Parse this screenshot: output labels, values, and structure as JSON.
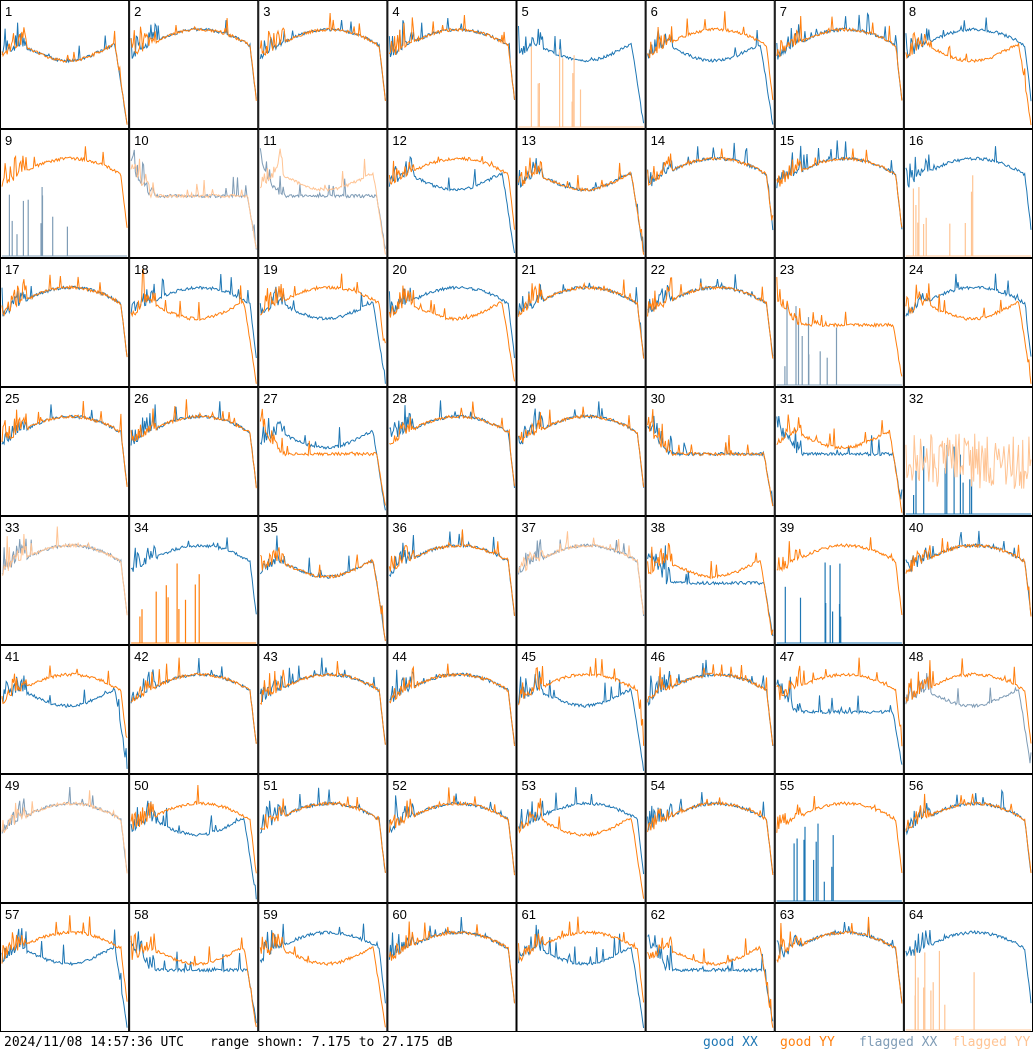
{
  "footer": {
    "timestamp": "2024/11/08 14:57:36 UTC",
    "range_text": "range shown: 7.175 to 27.175 dB",
    "legend": [
      {
        "key": "good_xx",
        "label": "good XX",
        "color": "#1f77b4"
      },
      {
        "key": "good_yy",
        "label": "good YY",
        "color": "#ff7f0e"
      },
      {
        "key": "flagged_xx",
        "label": "flagged XX",
        "color": "#7f9cb6"
      },
      {
        "key": "flagged_yy",
        "label": "flagged YY",
        "color": "#ffc494"
      }
    ]
  },
  "chart_data": {
    "type": "line",
    "layout": "8x8 small multiples",
    "y_range_db": [
      7.175,
      27.175
    ],
    "colors": {
      "good_xx": "#1f77b4",
      "good_yy": "#ff7f0e",
      "flagged_xx": "#7f9cb6",
      "flagged_yy": "#ffc494"
    },
    "panels": [
      {
        "label": "1",
        "xx": "dip",
        "yy": "dip",
        "flag_xx": false,
        "flag_yy": false
      },
      {
        "label": "2",
        "xx": "std",
        "yy": "std",
        "flag_xx": false,
        "flag_yy": false
      },
      {
        "label": "3",
        "xx": "std",
        "yy": "std",
        "flag_xx": false,
        "flag_yy": false
      },
      {
        "label": "4",
        "xx": "std",
        "yy": "std",
        "flag_xx": false,
        "flag_yy": false
      },
      {
        "label": "5",
        "xx": "dip",
        "yy": "dead",
        "flag_xx": false,
        "flag_yy": true
      },
      {
        "label": "6",
        "xx": "dip",
        "yy": "std",
        "flag_xx": false,
        "flag_yy": false
      },
      {
        "label": "7",
        "xx": "std",
        "yy": "std",
        "flag_xx": false,
        "flag_yy": false
      },
      {
        "label": "8",
        "xx": "std",
        "yy": "dip",
        "flag_xx": false,
        "flag_yy": false
      },
      {
        "label": "9",
        "xx": "dead",
        "yy": "std",
        "flag_xx": true,
        "flag_yy": false
      },
      {
        "label": "10",
        "xx": "flat",
        "yy": "flat",
        "flag_xx": true,
        "flag_yy": true
      },
      {
        "label": "11",
        "xx": "flat",
        "yy": "dip",
        "flag_xx": true,
        "flag_yy": true
      },
      {
        "label": "12",
        "xx": "dip",
        "yy": "std",
        "flag_xx": false,
        "flag_yy": false
      },
      {
        "label": "13",
        "xx": "dip",
        "yy": "dip",
        "flag_xx": false,
        "flag_yy": false
      },
      {
        "label": "14",
        "xx": "std",
        "yy": "std",
        "flag_xx": false,
        "flag_yy": false
      },
      {
        "label": "15",
        "xx": "std",
        "yy": "std",
        "flag_xx": false,
        "flag_yy": false
      },
      {
        "label": "16",
        "xx": "std",
        "yy": "dead",
        "flag_xx": false,
        "flag_yy": true
      },
      {
        "label": "17",
        "xx": "std",
        "yy": "std",
        "flag_xx": false,
        "flag_yy": false
      },
      {
        "label": "18",
        "xx": "std",
        "yy": "dip",
        "flag_xx": false,
        "flag_yy": false
      },
      {
        "label": "19",
        "xx": "dip",
        "yy": "std",
        "flag_xx": false,
        "flag_yy": false
      },
      {
        "label": "20",
        "xx": "std",
        "yy": "dip",
        "flag_xx": false,
        "flag_yy": false
      },
      {
        "label": "21",
        "xx": "std",
        "yy": "std",
        "flag_xx": false,
        "flag_yy": false
      },
      {
        "label": "22",
        "xx": "std",
        "yy": "std",
        "flag_xx": false,
        "flag_yy": false
      },
      {
        "label": "23",
        "xx": "dead",
        "yy": "flat",
        "flag_xx": true,
        "flag_yy": false
      },
      {
        "label": "24",
        "xx": "std",
        "yy": "dip",
        "flag_xx": false,
        "flag_yy": false
      },
      {
        "label": "25",
        "xx": "std",
        "yy": "std",
        "flag_xx": false,
        "flag_yy": false
      },
      {
        "label": "26",
        "xx": "std",
        "yy": "std",
        "flag_xx": false,
        "flag_yy": false
      },
      {
        "label": "27",
        "xx": "dip",
        "yy": "flat",
        "flag_xx": false,
        "flag_yy": false
      },
      {
        "label": "28",
        "xx": "std",
        "yy": "std",
        "flag_xx": false,
        "flag_yy": false
      },
      {
        "label": "29",
        "xx": "std",
        "yy": "std",
        "flag_xx": false,
        "flag_yy": false
      },
      {
        "label": "30",
        "xx": "flat",
        "yy": "flat",
        "flag_xx": false,
        "flag_yy": false
      },
      {
        "label": "31",
        "xx": "flat",
        "yy": "dip",
        "flag_xx": false,
        "flag_yy": false
      },
      {
        "label": "32",
        "xx": "dead",
        "yy": "noise",
        "flag_xx": false,
        "flag_yy": true
      },
      {
        "label": "33",
        "xx": "std",
        "yy": "std",
        "flag_xx": true,
        "flag_yy": true
      },
      {
        "label": "34",
        "xx": "std",
        "yy": "dead",
        "flag_xx": false,
        "flag_yy": false
      },
      {
        "label": "35",
        "xx": "dip",
        "yy": "dip",
        "flag_xx": false,
        "flag_yy": false
      },
      {
        "label": "36",
        "xx": "std",
        "yy": "std",
        "flag_xx": false,
        "flag_yy": false
      },
      {
        "label": "37",
        "xx": "std",
        "yy": "std",
        "flag_xx": true,
        "flag_yy": true
      },
      {
        "label": "38",
        "xx": "flat",
        "yy": "dip",
        "flag_xx": false,
        "flag_yy": false
      },
      {
        "label": "39",
        "xx": "dead",
        "yy": "std",
        "flag_xx": false,
        "flag_yy": false
      },
      {
        "label": "40",
        "xx": "std",
        "yy": "std",
        "flag_xx": false,
        "flag_yy": false
      },
      {
        "label": "41",
        "xx": "dip",
        "yy": "std",
        "flag_xx": false,
        "flag_yy": false
      },
      {
        "label": "42",
        "xx": "std",
        "yy": "std",
        "flag_xx": false,
        "flag_yy": false
      },
      {
        "label": "43",
        "xx": "std",
        "yy": "std",
        "flag_xx": false,
        "flag_yy": false
      },
      {
        "label": "44",
        "xx": "std",
        "yy": "std",
        "flag_xx": false,
        "flag_yy": false
      },
      {
        "label": "45",
        "xx": "dip",
        "yy": "std",
        "flag_xx": false,
        "flag_yy": false
      },
      {
        "label": "46",
        "xx": "std",
        "yy": "std",
        "flag_xx": false,
        "flag_yy": false
      },
      {
        "label": "47",
        "xx": "flat",
        "yy": "std",
        "flag_xx": false,
        "flag_yy": false
      },
      {
        "label": "48",
        "xx": "dip",
        "yy": "std",
        "flag_xx": true,
        "flag_yy": false
      },
      {
        "label": "49",
        "xx": "std",
        "yy": "std",
        "flag_xx": true,
        "flag_yy": true
      },
      {
        "label": "50",
        "xx": "dip",
        "yy": "std",
        "flag_xx": false,
        "flag_yy": false
      },
      {
        "label": "51",
        "xx": "std",
        "yy": "std",
        "flag_xx": false,
        "flag_yy": false
      },
      {
        "label": "52",
        "xx": "std",
        "yy": "std",
        "flag_xx": false,
        "flag_yy": false
      },
      {
        "label": "53",
        "xx": "std",
        "yy": "dip",
        "flag_xx": false,
        "flag_yy": false
      },
      {
        "label": "54",
        "xx": "std",
        "yy": "std",
        "flag_xx": false,
        "flag_yy": false
      },
      {
        "label": "55",
        "xx": "dead",
        "yy": "std",
        "flag_xx": false,
        "flag_yy": false
      },
      {
        "label": "56",
        "xx": "std",
        "yy": "std",
        "flag_xx": false,
        "flag_yy": false
      },
      {
        "label": "57",
        "xx": "dip",
        "yy": "std",
        "flag_xx": false,
        "flag_yy": false
      },
      {
        "label": "58",
        "xx": "flat",
        "yy": "dip",
        "flag_xx": false,
        "flag_yy": false
      },
      {
        "label": "59",
        "xx": "std",
        "yy": "dip",
        "flag_xx": false,
        "flag_yy": false
      },
      {
        "label": "60",
        "xx": "std",
        "yy": "std",
        "flag_xx": false,
        "flag_yy": false
      },
      {
        "label": "61",
        "xx": "dip",
        "yy": "std",
        "flag_xx": false,
        "flag_yy": false
      },
      {
        "label": "62",
        "xx": "flat",
        "yy": "dip",
        "flag_xx": false,
        "flag_yy": false
      },
      {
        "label": "63",
        "xx": "std",
        "yy": "std",
        "flag_xx": false,
        "flag_yy": false
      },
      {
        "label": "64",
        "xx": "std",
        "yy": "dead",
        "flag_xx": false,
        "flag_yy": true
      }
    ]
  }
}
